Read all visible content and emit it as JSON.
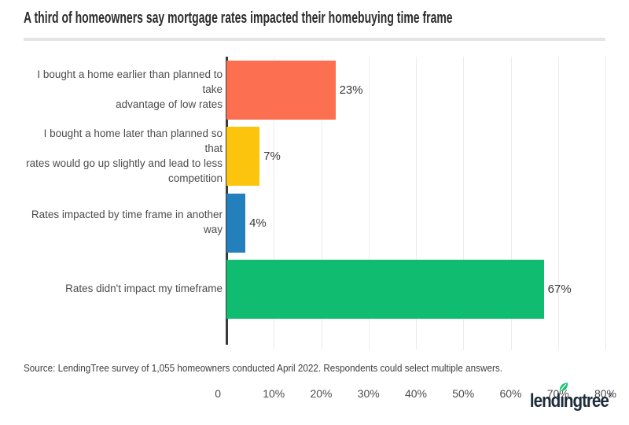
{
  "title": "A third of homeowners say mortgage rates impacted their homebuying time frame",
  "chart_data": {
    "type": "bar",
    "orientation": "horizontal",
    "categories": [
      "I bought a home earlier than planned to take\nadvantage of low rates",
      "I bought a home later than planned so that\nrates would go up slightly and lead to less\ncompetition",
      "Rates impacted by time frame in another\nway",
      "Rates didn't impact my timeframe"
    ],
    "values": [
      23,
      7,
      4,
      67
    ],
    "value_labels": [
      "23%",
      "7%",
      "4%",
      "67%"
    ],
    "colors": [
      "#fc6f50",
      "#fcc40d",
      "#2480bd",
      "#10bd70"
    ],
    "xlim": [
      0,
      80
    ],
    "ticks": [
      "0",
      "10%",
      "20%",
      "30%",
      "40%",
      "50%",
      "60%",
      "70%",
      "80%"
    ],
    "grid": true,
    "legend": "none",
    "title": "A third of homeowners say mortgage rates impacted their homebuying time frame"
  },
  "source": "Source: LendingTree survey of 1,055 homeowners conducted April 2022. Respondents could select multiple answers.",
  "logo": {
    "brand": "lendingtree",
    "text_before": "lend",
    "text_i": "ı",
    "text_after": "ngtree",
    "registered": "®",
    "navy": "#1f2c3b",
    "leaf_green": "#1dc06e"
  }
}
